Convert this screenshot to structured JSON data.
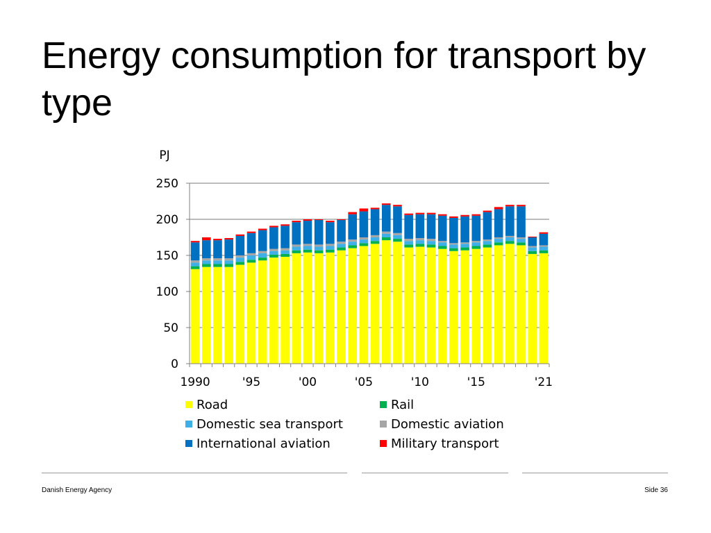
{
  "slide": {
    "title": "Energy consumption for transport by type",
    "footer_left": "Danish Energy Agency",
    "footer_right": "Side 36"
  },
  "chart_data": {
    "type": "bar",
    "stacked": true,
    "title": "Energy consumption for transport by type",
    "ylabel": "PJ",
    "xlabel": "",
    "ylim": [
      0,
      250
    ],
    "yticks": [
      0,
      50,
      100,
      150,
      200,
      250
    ],
    "grid": true,
    "legend_position": "bottom",
    "categories": [
      "1990",
      "1991",
      "1992",
      "1993",
      "1994",
      "1995",
      "1996",
      "1997",
      "1998",
      "1999",
      "2000",
      "2001",
      "2002",
      "2003",
      "2004",
      "2005",
      "2006",
      "2007",
      "2008",
      "2009",
      "2010",
      "2011",
      "2012",
      "2013",
      "2014",
      "2015",
      "2016",
      "2017",
      "2018",
      "2019",
      "2020",
      "2021"
    ],
    "xtick_labels": [
      {
        "index": 0,
        "label": "1990"
      },
      {
        "index": 5,
        "label": "'95"
      },
      {
        "index": 10,
        "label": "'00"
      },
      {
        "index": 15,
        "label": "'05"
      },
      {
        "index": 20,
        "label": "'10"
      },
      {
        "index": 25,
        "label": "'15"
      },
      {
        "index": 31,
        "label": "'21"
      }
    ],
    "series": [
      {
        "name": "Road",
        "color": "#FFFF00",
        "values": [
          131,
          134,
          134,
          134,
          137,
          140,
          143,
          147,
          148,
          153,
          154,
          153,
          154,
          157,
          160,
          163,
          166,
          171,
          169,
          161,
          162,
          161,
          159,
          156,
          157,
          159,
          161,
          164,
          166,
          164,
          152,
          153
        ]
      },
      {
        "name": "Rail",
        "color": "#00B050",
        "values": [
          4,
          4,
          4,
          4,
          4,
          4,
          4,
          4,
          4,
          4,
          4,
          4,
          4,
          4,
          4,
          4,
          4,
          4,
          4,
          4,
          4,
          4,
          4,
          4,
          4,
          4,
          4,
          4,
          4,
          4,
          4,
          4
        ]
      },
      {
        "name": "Domestic sea transport",
        "color": "#3FAFE8",
        "values": [
          5,
          5,
          5,
          5,
          6,
          6,
          6,
          5,
          5,
          5,
          5,
          5,
          5,
          5,
          5,
          5,
          5,
          5,
          5,
          5,
          5,
          5,
          5,
          5,
          5,
          5,
          5,
          5,
          5,
          5,
          5,
          5
        ]
      },
      {
        "name": "Domestic aviation",
        "color": "#A6A6A6",
        "values": [
          3,
          3,
          3,
          3,
          3,
          3,
          3,
          3,
          3,
          3,
          3,
          3,
          3,
          3,
          3,
          3,
          3,
          3,
          3,
          3,
          3,
          3,
          2,
          2,
          2,
          2,
          2,
          2,
          2,
          2,
          2,
          2
        ]
      },
      {
        "name": "International aviation",
        "color": "#0070C0",
        "values": [
          25,
          25,
          25,
          26,
          27,
          28,
          29,
          30,
          31,
          31,
          32,
          34,
          30,
          30,
          35,
          36,
          36,
          37,
          37,
          33,
          33,
          34,
          35,
          35,
          36,
          35,
          38,
          39,
          41,
          43,
          12,
          16
        ]
      },
      {
        "name": "Military transport",
        "color": "#FF0000",
        "values": [
          2,
          4,
          2,
          2,
          2,
          2,
          2,
          2,
          2,
          2,
          2,
          1,
          2,
          1,
          3,
          4,
          2,
          2,
          2,
          2,
          2,
          2,
          2,
          2,
          2,
          2,
          2,
          3,
          2,
          2,
          1,
          2
        ]
      }
    ]
  }
}
